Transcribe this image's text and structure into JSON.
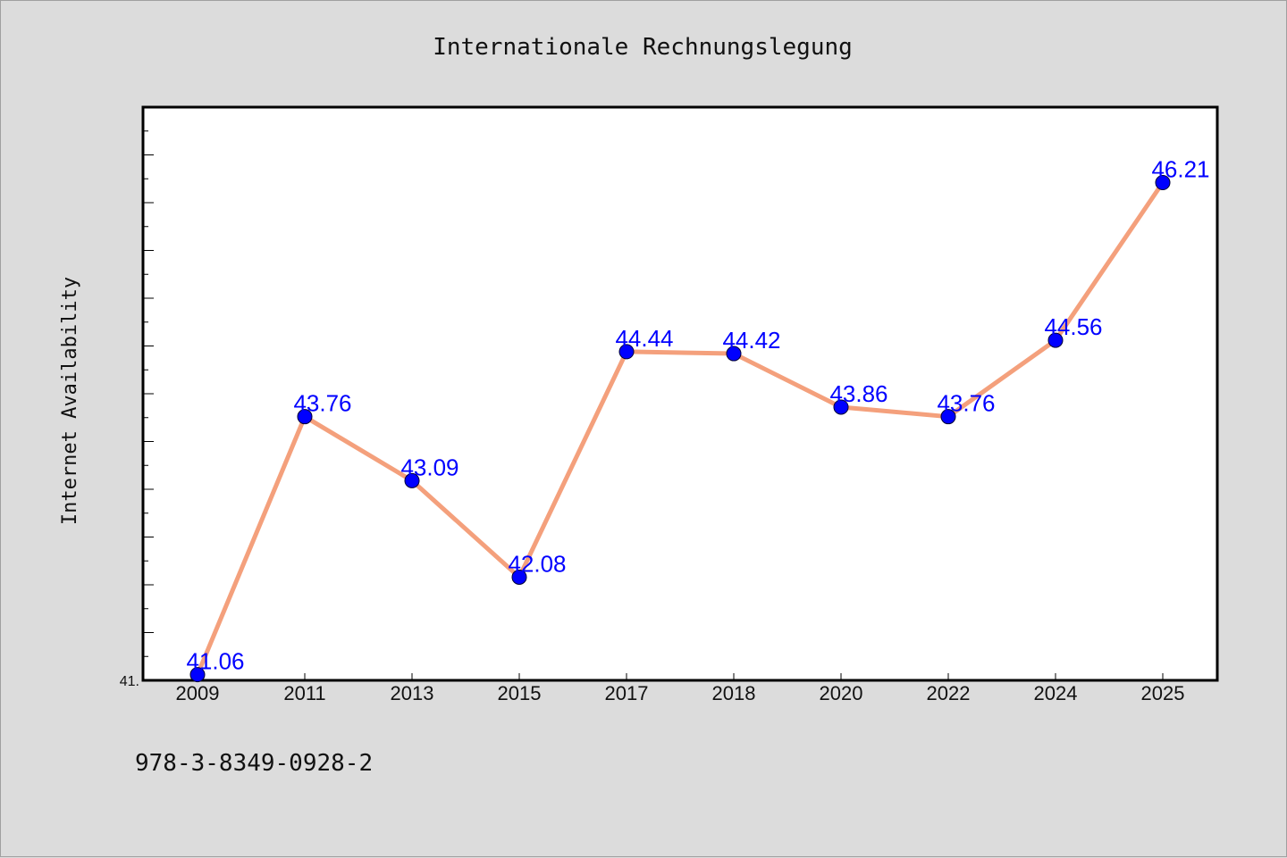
{
  "chart_data": {
    "type": "line",
    "title": "Internationale Rechnungslegung",
    "xlabel": "",
    "ylabel": "Internet Availability",
    "categories": [
      "2009",
      "2011",
      "2013",
      "2015",
      "2017",
      "2018",
      "2020",
      "2022",
      "2024",
      "2025"
    ],
    "series": [
      {
        "values": [
          41.06,
          43.76,
          43.09,
          42.08,
          44.44,
          44.42,
          43.86,
          43.76,
          44.56,
          46.21
        ]
      }
    ],
    "data_labels": [
      "41.06",
      "43.76",
      "43.09",
      "42.08",
      "44.44",
      "44.42",
      "43.86",
      "43.76",
      "44.56",
      "46.21"
    ],
    "y_tick_label": "41.",
    "ylim": [
      41.0,
      47.0
    ],
    "grid": false,
    "legend": "none",
    "colors": {
      "line": "#f4a07c",
      "marker": "#0000ff",
      "label": "#0000ff",
      "background": "#dcdcdc",
      "plot_bg": "#ffffff"
    }
  },
  "footer_note": "978-3-8349-0928-2"
}
